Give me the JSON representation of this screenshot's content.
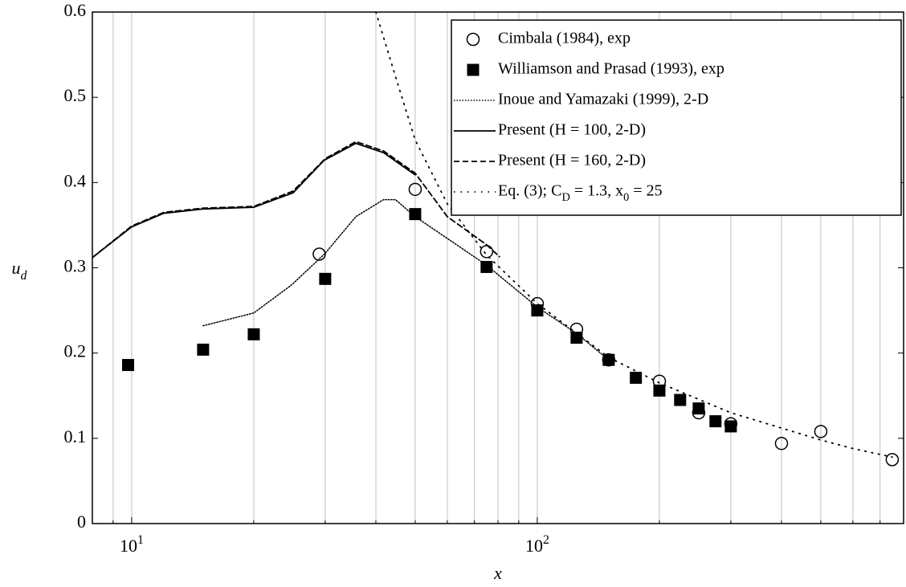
{
  "chart_data": {
    "type": "line",
    "xlabel": "x",
    "ylabel": "u_d",
    "xscale": "log",
    "xlim": [
      8,
      800
    ],
    "ylim": [
      0,
      0.6
    ],
    "xticks": [
      {
        "value": 10,
        "label": "10^1"
      },
      {
        "value": 100,
        "label": "10^2"
      }
    ],
    "xminor": [
      9,
      20,
      30,
      40,
      50,
      60,
      70,
      80,
      90,
      200,
      300,
      400,
      500,
      600,
      700,
      800
    ],
    "yticks": [
      0,
      0.1,
      0.2,
      0.3,
      0.4,
      0.5,
      0.6
    ],
    "grid": true,
    "legend": "upper right",
    "series": [
      {
        "name": "Cimbala (1984), exp",
        "color": "#000000",
        "style": "circle",
        "x": [
          29,
          50,
          75,
          100,
          125,
          150,
          200,
          250,
          300,
          400,
          500,
          750
        ],
        "values": [
          0.316,
          0.392,
          0.319,
          0.258,
          0.228,
          0.192,
          0.167,
          0.13,
          0.117,
          0.094,
          0.108,
          0.075
        ]
      },
      {
        "name": "Williamson and Prasad (1993), exp",
        "color": "#000000",
        "style": "square",
        "x": [
          9.8,
          15,
          20,
          30,
          50,
          75,
          100,
          125,
          150,
          175,
          200,
          225,
          250,
          275,
          300
        ],
        "values": [
          0.186,
          0.204,
          0.222,
          0.287,
          0.363,
          0.301,
          0.25,
          0.218,
          0.192,
          0.171,
          0.156,
          0.145,
          0.135,
          0.12,
          0.114
        ]
      },
      {
        "name": "Inoue and Yamazaki (1999), 2-D",
        "color": "#000000",
        "style": "dotted",
        "x": [
          15,
          20,
          24.8,
          30,
          35.7,
          41.8,
          44.7,
          50,
          61.5,
          75,
          100,
          125,
          150
        ],
        "values": [
          0.232,
          0.247,
          0.28,
          0.317,
          0.36,
          0.38,
          0.38,
          0.36,
          0.331,
          0.303,
          0.254,
          0.223,
          0.192
        ]
      },
      {
        "name": "Present (H = 100, 2-D)",
        "color": "#000000",
        "style": "solid",
        "x": [
          8,
          10,
          12,
          15,
          20,
          25,
          29.8,
          35.7,
          41.8,
          50
        ],
        "values": [
          0.312,
          0.348,
          0.364,
          0.369,
          0.371,
          0.388,
          0.426,
          0.446,
          0.435,
          0.409
        ]
      },
      {
        "name": "Present (H = 160, 2-D)",
        "color": "#000000",
        "style": "dashed",
        "x": [
          8,
          10,
          12,
          15,
          20,
          25,
          30,
          35.7,
          41.8,
          50,
          60,
          75,
          80.7
        ],
        "values": [
          0.312,
          0.349,
          0.365,
          0.37,
          0.372,
          0.39,
          0.428,
          0.448,
          0.437,
          0.411,
          0.36,
          0.327,
          0.313
        ]
      },
      {
        "name": "Eq. (3); C_D = 1.3, x_0 = 25",
        "color": "#000000",
        "style": "loose-dotted",
        "x": [
          40,
          45,
          50,
          60,
          75,
          100,
          150,
          200,
          300,
          400,
          500,
          600,
          750
        ],
        "values": [
          0.6,
          0.52,
          0.45,
          0.375,
          0.315,
          0.258,
          0.195,
          0.165,
          0.13,
          0.112,
          0.098,
          0.088,
          0.078
        ]
      }
    ]
  }
}
